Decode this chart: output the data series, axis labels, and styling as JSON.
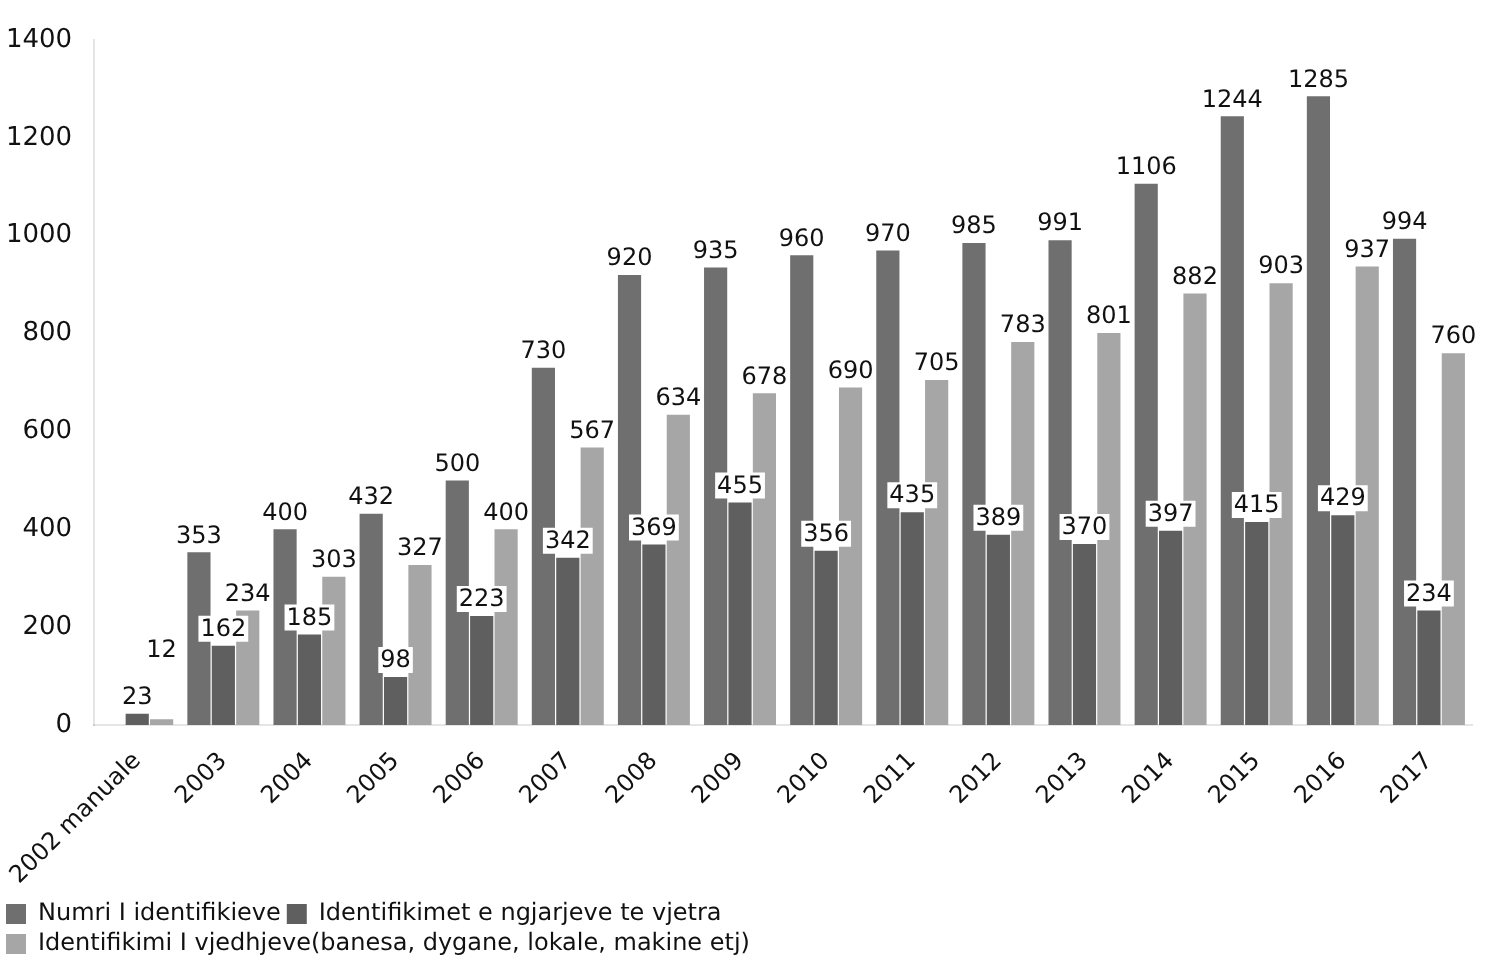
{
  "chart_data": {
    "type": "bar",
    "categories": [
      "2002 manuale",
      "2003",
      "2004",
      "2005",
      "2006",
      "2007",
      "2008",
      "2009",
      "2010",
      "2011",
      "2012",
      "2013",
      "2014",
      "2015",
      "2016",
      "2017"
    ],
    "series": [
      {
        "name": "Numri I identifikieve",
        "color": "#6f6f6f",
        "values": [
          null,
          353,
          400,
          432,
          500,
          730,
          920,
          935,
          960,
          970,
          985,
          991,
          1106,
          1244,
          1285,
          994
        ]
      },
      {
        "name": "Identifikimet e ngjarjeve te vjetra",
        "color": "#5f5f5f",
        "values": [
          23,
          162,
          185,
          98,
          223,
          342,
          369,
          455,
          356,
          435,
          389,
          370,
          397,
          415,
          429,
          234
        ]
      },
      {
        "name": "Identifikimi I vjedhjeve(banesa, dygane, lokale, makine etj)",
        "color": "#a6a6a6",
        "values": [
          12,
          234,
          303,
          327,
          400,
          567,
          634,
          678,
          690,
          705,
          783,
          801,
          882,
          903,
          937,
          760
        ]
      }
    ],
    "ylim": [
      0,
      1400
    ],
    "yticks": [
      0,
      200,
      400,
      600,
      800,
      1000,
      1200,
      1400
    ],
    "data_labels": true,
    "legend": "bottom"
  }
}
